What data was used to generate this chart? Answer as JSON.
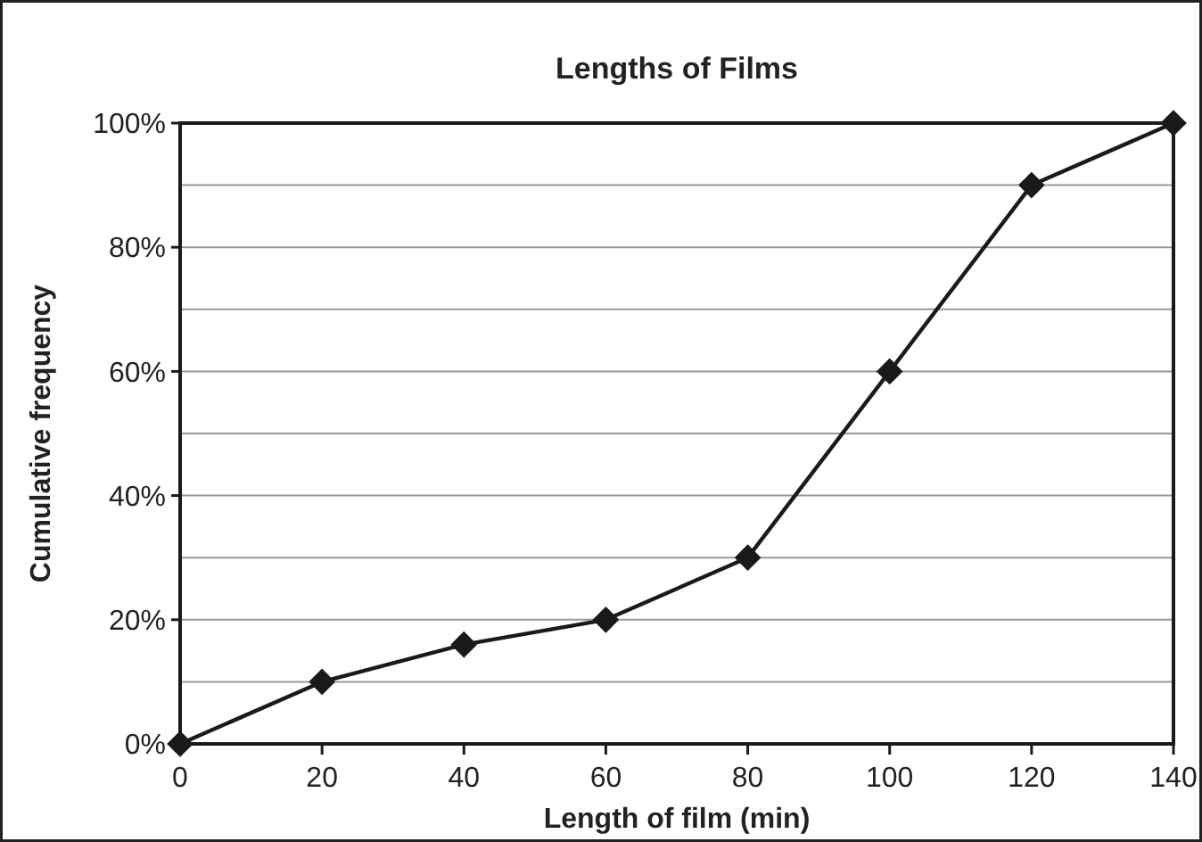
{
  "chart_data": {
    "type": "line",
    "title": "Lengths of Films",
    "xlabel": "Length of film (min)",
    "ylabel": "Cumulative frequency",
    "x": [
      0,
      20,
      40,
      60,
      80,
      100,
      120,
      140
    ],
    "series": [
      {
        "color": "#1a1a1a",
        "values": [
          0,
          10,
          16,
          20,
          30,
          60,
          90,
          100
        ]
      }
    ],
    "xlim": [
      0,
      140
    ],
    "xticks": [
      0,
      20,
      40,
      60,
      80,
      100,
      120,
      140
    ],
    "ylim": [
      0,
      100
    ],
    "yticks": [
      {
        "value": 0,
        "label": "0%"
      },
      {
        "value": 10,
        "label": null
      },
      {
        "value": 20,
        "label": "20%"
      },
      {
        "value": 30,
        "label": null
      },
      {
        "value": 40,
        "label": "40%"
      },
      {
        "value": 50,
        "label": null
      },
      {
        "value": 60,
        "label": "60%"
      },
      {
        "value": 70,
        "label": null
      },
      {
        "value": 80,
        "label": "80%"
      },
      {
        "value": 90,
        "label": null
      },
      {
        "value": 100,
        "label": "100%"
      }
    ],
    "grid": "y",
    "marker": "diamond",
    "line_style": "solid"
  }
}
